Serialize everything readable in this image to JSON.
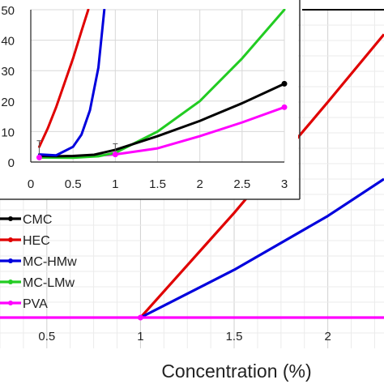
{
  "chart_data": [
    {
      "type": "line",
      "title": "",
      "xlabel": "Concentration (%)",
      "ylabel": "",
      "xlim": [
        0.25,
        2.3
      ],
      "x_ticks": [
        "0.5",
        "1",
        "1.5",
        "2"
      ],
      "ylim": [
        0,
        1
      ],
      "grid": true,
      "legend_position": "left",
      "series": [
        {
          "name": "CMC",
          "color": "#000000",
          "x": [],
          "y": []
        },
        {
          "name": "HEC",
          "color": "#e00000",
          "x": [
            1.0,
            1.25,
            1.5,
            1.75,
            2.0,
            2.3
          ],
          "y": [
            0.0,
            0.17,
            0.34,
            0.52,
            0.7,
            0.92
          ]
        },
        {
          "name": "MC-HMw",
          "color": "#0000dd",
          "x": [
            1.0,
            1.5,
            2.0,
            2.3
          ],
          "y": [
            0.0,
            0.155,
            0.33,
            0.45
          ]
        },
        {
          "name": "MC-LMw",
          "color": "#22cc22",
          "x": [],
          "y": []
        },
        {
          "name": "PVA",
          "color": "#ff00ff",
          "x": [
            0.25,
            1.0,
            2.3
          ],
          "y": [
            0.0,
            0.0,
            0.0
          ]
        }
      ]
    },
    {
      "type": "line",
      "title": "",
      "xlabel": "",
      "ylabel": "",
      "xlim": [
        0,
        3
      ],
      "ylim": [
        0,
        50
      ],
      "x_ticks": [
        "0",
        "0.5",
        "1",
        "1.5",
        "2",
        "2.5",
        "3"
      ],
      "y_ticks": [
        "0",
        "10",
        "20",
        "30",
        "40",
        "50"
      ],
      "grid": true,
      "series": [
        {
          "name": "CMC",
          "color": "#000000",
          "x": [
            0.1,
            0.3,
            0.5,
            0.75,
            1.0,
            1.5,
            2.0,
            2.5,
            3.0
          ],
          "y": [
            2,
            1.9,
            2,
            2.4,
            4,
            8.5,
            13.5,
            19.3,
            25.7
          ]
        },
        {
          "name": "HEC",
          "color": "#e00000",
          "x": [
            0.1,
            0.2,
            0.3,
            0.4,
            0.5,
            0.6,
            0.68
          ],
          "y": [
            5,
            11,
            18,
            26,
            34,
            43,
            50
          ]
        },
        {
          "name": "MC-HMw",
          "color": "#0000dd",
          "x": [
            0.1,
            0.3,
            0.5,
            0.6,
            0.7,
            0.8,
            0.87
          ],
          "y": [
            2.5,
            2.2,
            5,
            9,
            17,
            31,
            50
          ]
        },
        {
          "name": "MC-LMw",
          "color": "#22cc22",
          "x": [
            0.1,
            0.5,
            0.8,
            1.0,
            1.5,
            2.0,
            2.5,
            3.0
          ],
          "y": [
            1.5,
            1.4,
            1.9,
            3,
            10,
            20,
            34,
            50
          ]
        },
        {
          "name": "PVA",
          "color": "#ff00ff",
          "x": [
            0.1,
            0.5,
            1.0,
            1.5,
            2.0,
            2.5,
            3.0
          ],
          "y": [
            1.5,
            1.6,
            2.5,
            4.5,
            8.5,
            13,
            18
          ]
        }
      ],
      "markers": [
        {
          "series": "CMC",
          "x": 3.0,
          "y": 25.7
        },
        {
          "series": "PVA",
          "x": 0.1,
          "y": 1.5
        },
        {
          "series": "PVA",
          "x": 1.0,
          "y": 2.5
        },
        {
          "series": "PVA",
          "x": 3.0,
          "y": 18
        }
      ],
      "error_bars": [
        {
          "x": 0.1,
          "low": 1.5,
          "high": 7
        },
        {
          "x": 1.0,
          "low": 2.5,
          "high": 6
        }
      ]
    }
  ]
}
